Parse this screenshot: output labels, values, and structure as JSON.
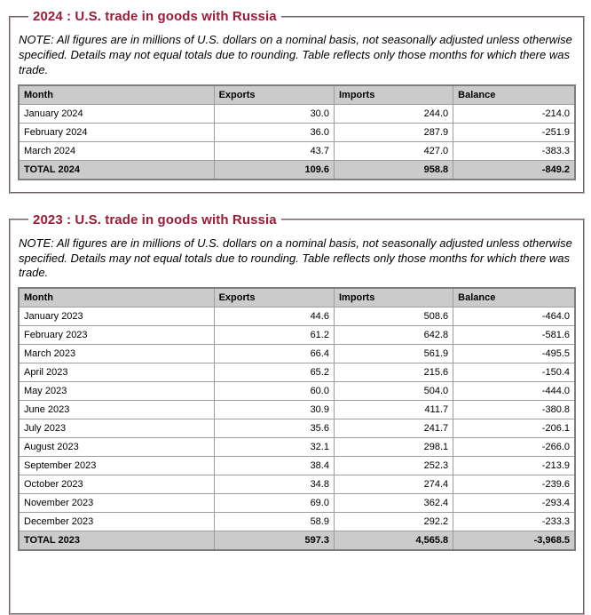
{
  "colors": {
    "title_text": "#9b1b38",
    "header_row_bg": "#cbcbcb",
    "total_row_bg": "#cbcbcb",
    "table_outer_border": "#7d7d7d",
    "cell_border": "#9d9d9d",
    "fieldset_border": "#c0aeb6",
    "page_background": "#ffffff"
  },
  "sections": [
    {
      "id": "trade-2024",
      "title": "2024 : U.S. trade in goods with Russia",
      "note": "NOTE: All figures are in millions of U.S. dollars on a nominal basis, not seasonally adjusted unless otherwise specified. Details may not equal totals due to rounding. Table reflects only those months for which there was trade.",
      "columns": [
        "Month",
        "Exports",
        "Imports",
        "Balance"
      ],
      "rows": [
        [
          "January 2024",
          "30.0",
          "244.0",
          "-214.0"
        ],
        [
          "February 2024",
          "36.0",
          "287.9",
          "-251.9"
        ],
        [
          "March 2024",
          "43.7",
          "427.0",
          "-383.3"
        ]
      ],
      "total_row": [
        "TOTAL 2024",
        "109.6",
        "958.8",
        "-849.2"
      ]
    },
    {
      "id": "trade-2023",
      "title": "2023 : U.S. trade in goods with Russia",
      "note": "NOTE: All figures are in millions of U.S. dollars on a nominal basis, not seasonally adjusted unless otherwise specified. Details may not equal totals due to rounding. Table reflects only those months for which there was trade.",
      "columns": [
        "Month",
        "Exports",
        "Imports",
        "Balance"
      ],
      "rows": [
        [
          "January 2023",
          "44.6",
          "508.6",
          "-464.0"
        ],
        [
          "February 2023",
          "61.2",
          "642.8",
          "-581.6"
        ],
        [
          "March 2023",
          "66.4",
          "561.9",
          "-495.5"
        ],
        [
          "April 2023",
          "65.2",
          "215.6",
          "-150.4"
        ],
        [
          "May 2023",
          "60.0",
          "504.0",
          "-444.0"
        ],
        [
          "June 2023",
          "30.9",
          "411.7",
          "-380.8"
        ],
        [
          "July 2023",
          "35.6",
          "241.7",
          "-206.1"
        ],
        [
          "August 2023",
          "32.1",
          "298.1",
          "-266.0"
        ],
        [
          "September 2023",
          "38.4",
          "252.3",
          "-213.9"
        ],
        [
          "October 2023",
          "34.8",
          "274.4",
          "-239.6"
        ],
        [
          "November 2023",
          "69.0",
          "362.4",
          "-293.4"
        ],
        [
          "December 2023",
          "58.9",
          "292.2",
          "-233.3"
        ]
      ],
      "total_row": [
        "TOTAL 2023",
        "597.3",
        "4,565.8",
        "-3,968.5"
      ]
    }
  ]
}
